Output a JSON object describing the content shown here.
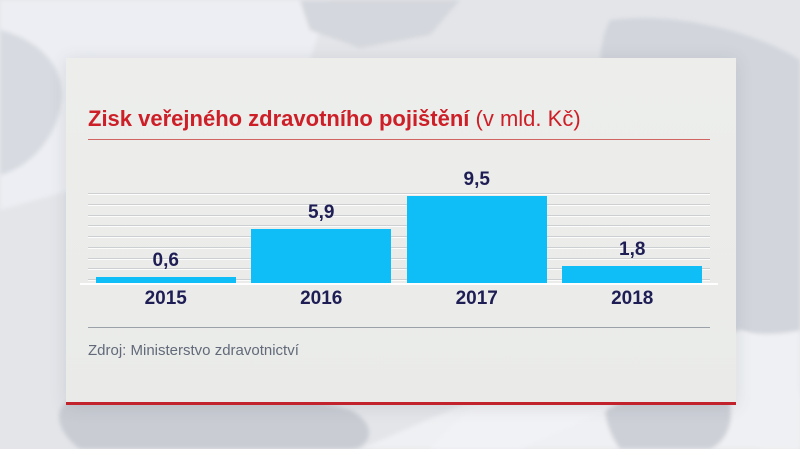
{
  "chart_data": {
    "type": "bar",
    "title": "Zisk veřejného zdravotního pojištění",
    "title_unit": "(v mld. Kč)",
    "categories": [
      "2015",
      "2016",
      "2017",
      "2018"
    ],
    "values": [
      0.6,
      5.9,
      9.5,
      1.8
    ],
    "value_labels": [
      "0,6",
      "5,9",
      "9,5",
      "1,8"
    ],
    "unit": "mld. Kč",
    "ylim": [
      0,
      10
    ],
    "gridline_count": 9,
    "grid": "horizontal",
    "legend_position": "none",
    "source": "Zdroj: Ministerstvo zdravotnictví"
  },
  "colors": {
    "title_red": "#cd1f27",
    "accent_red": "#c2222b",
    "bar_cyan": "#0fbdf7",
    "label_navy": "#1e1e55",
    "source_gray": "#626a79"
  }
}
